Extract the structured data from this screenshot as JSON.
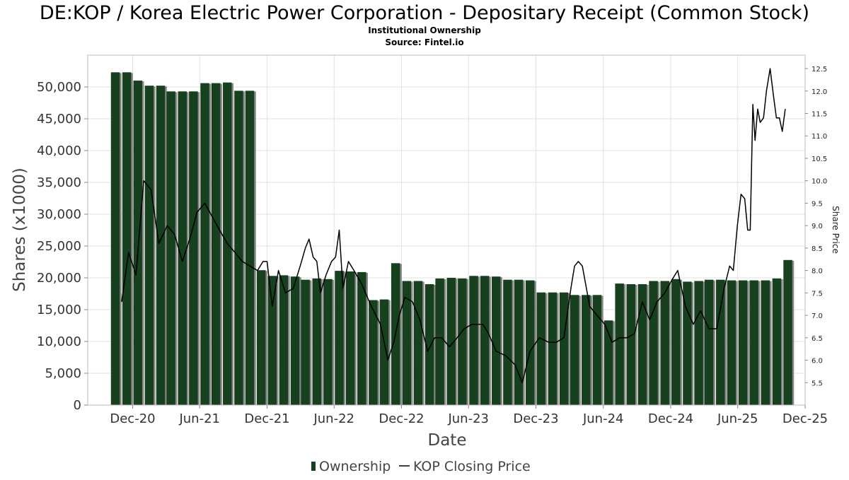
{
  "title": "DE:KOP / Korea Electric Power Corporation - Depositary Receipt (Common Stock)",
  "subtitle_1": "Institutional Ownership",
  "subtitle_2": "Source: Fintel.io",
  "chart_data": {
    "type": "bar+line",
    "xlabel": "Date",
    "ylabel_left": "Shares (x1000)",
    "ylabel_right": "Share Price",
    "ylim_left": [
      0,
      55000
    ],
    "ylim_right": [
      5.0,
      12.8
    ],
    "x_range": [
      "2020-08",
      "2025-12"
    ],
    "x_ticks": [
      {
        "date": "2020-12",
        "label": "Dec-20"
      },
      {
        "date": "2021-06",
        "label": "Jun-21"
      },
      {
        "date": "2021-12",
        "label": "Dec-21"
      },
      {
        "date": "2022-06",
        "label": "Jun-22"
      },
      {
        "date": "2022-12",
        "label": "Dec-22"
      },
      {
        "date": "2023-06",
        "label": "Jun-23"
      },
      {
        "date": "2023-12",
        "label": "Dec-23"
      },
      {
        "date": "2024-06",
        "label": "Jun-24"
      },
      {
        "date": "2024-12",
        "label": "Dec-24"
      },
      {
        "date": "2025-06",
        "label": "Jun-25"
      },
      {
        "date": "2025-12",
        "label": "Dec-25"
      }
    ],
    "y_ticks_left": [
      {
        "value": 0,
        "label": "0"
      },
      {
        "value": 5000,
        "label": "5,000"
      },
      {
        "value": 10000,
        "label": "10,000"
      },
      {
        "value": 15000,
        "label": "15,000"
      },
      {
        "value": 20000,
        "label": "20,000"
      },
      {
        "value": 25000,
        "label": "25,000"
      },
      {
        "value": 30000,
        "label": "30,000"
      },
      {
        "value": 35000,
        "label": "35,000"
      },
      {
        "value": 40000,
        "label": "40,000"
      },
      {
        "value": 45000,
        "label": "45,000"
      },
      {
        "value": 50000,
        "label": "50,000"
      }
    ],
    "y_ticks_right": [
      {
        "value": 5.5,
        "label": "5.5"
      },
      {
        "value": 6.0,
        "label": "6.0"
      },
      {
        "value": 6.5,
        "label": "6.5"
      },
      {
        "value": 7.0,
        "label": "7.0"
      },
      {
        "value": 7.5,
        "label": "7.5"
      },
      {
        "value": 8.0,
        "label": "8.0"
      },
      {
        "value": 8.5,
        "label": "8.5"
      },
      {
        "value": 9.0,
        "label": "9.0"
      },
      {
        "value": 9.5,
        "label": "9.5"
      },
      {
        "value": 10.0,
        "label": "10.0"
      },
      {
        "value": 10.5,
        "label": "10.5"
      },
      {
        "value": 11.0,
        "label": "11.0"
      },
      {
        "value": 11.5,
        "label": "11.5"
      },
      {
        "value": 12.0,
        "label": "12.0"
      },
      {
        "value": 12.5,
        "label": "12.5"
      }
    ],
    "grid": true,
    "legend_position": "bottom-center",
    "colors": {
      "bar": "#17401f",
      "bar_shadow": "#8a8a8a",
      "line": "#000000",
      "grid": "#e2e2e2"
    },
    "series": [
      {
        "name": "Ownership",
        "type": "bar",
        "points": [
          {
            "date": "2020-10-15",
            "value": 52300
          },
          {
            "date": "2020-11-15",
            "value": 52300
          },
          {
            "date": "2020-12-15",
            "value": 51000
          },
          {
            "date": "2021-01-15",
            "value": 50200
          },
          {
            "date": "2021-02-15",
            "value": 50200
          },
          {
            "date": "2021-03-15",
            "value": 49300
          },
          {
            "date": "2021-04-15",
            "value": 49300
          },
          {
            "date": "2021-05-15",
            "value": 49300
          },
          {
            "date": "2021-06-15",
            "value": 50600
          },
          {
            "date": "2021-07-15",
            "value": 50600
          },
          {
            "date": "2021-08-15",
            "value": 50700
          },
          {
            "date": "2021-09-15",
            "value": 49400
          },
          {
            "date": "2021-10-15",
            "value": 49400
          },
          {
            "date": "2021-11-15",
            "value": 21200
          },
          {
            "date": "2021-12-15",
            "value": 20300
          },
          {
            "date": "2022-01-15",
            "value": 20400
          },
          {
            "date": "2022-02-15",
            "value": 20200
          },
          {
            "date": "2022-03-15",
            "value": 19700
          },
          {
            "date": "2022-04-15",
            "value": 19900
          },
          {
            "date": "2022-05-15",
            "value": 19800
          },
          {
            "date": "2022-06-15",
            "value": 21100
          },
          {
            "date": "2022-07-15",
            "value": 21000
          },
          {
            "date": "2022-08-15",
            "value": 20900
          },
          {
            "date": "2022-09-15",
            "value": 16500
          },
          {
            "date": "2022-10-15",
            "value": 16600
          },
          {
            "date": "2022-11-15",
            "value": 22300
          },
          {
            "date": "2022-12-15",
            "value": 19500
          },
          {
            "date": "2023-01-15",
            "value": 19500
          },
          {
            "date": "2023-02-15",
            "value": 19000
          },
          {
            "date": "2023-03-15",
            "value": 19900
          },
          {
            "date": "2023-04-15",
            "value": 20000
          },
          {
            "date": "2023-05-15",
            "value": 19900
          },
          {
            "date": "2023-06-15",
            "value": 20300
          },
          {
            "date": "2023-07-15",
            "value": 20300
          },
          {
            "date": "2023-08-15",
            "value": 20200
          },
          {
            "date": "2023-09-15",
            "value": 19700
          },
          {
            "date": "2023-10-15",
            "value": 19700
          },
          {
            "date": "2023-11-15",
            "value": 19600
          },
          {
            "date": "2023-12-15",
            "value": 17700
          },
          {
            "date": "2024-01-15",
            "value": 17700
          },
          {
            "date": "2024-02-15",
            "value": 17700
          },
          {
            "date": "2024-03-15",
            "value": 17300
          },
          {
            "date": "2024-04-15",
            "value": 17300
          },
          {
            "date": "2024-05-15",
            "value": 17300
          },
          {
            "date": "2024-06-15",
            "value": 13300
          },
          {
            "date": "2024-07-15",
            "value": 19100
          },
          {
            "date": "2024-08-15",
            "value": 19000
          },
          {
            "date": "2024-09-15",
            "value": 19000
          },
          {
            "date": "2024-10-15",
            "value": 19500
          },
          {
            "date": "2024-11-15",
            "value": 19500
          },
          {
            "date": "2024-12-15",
            "value": 19800
          },
          {
            "date": "2025-01-15",
            "value": 19400
          },
          {
            "date": "2025-02-15",
            "value": 19500
          },
          {
            "date": "2025-03-15",
            "value": 19700
          },
          {
            "date": "2025-04-15",
            "value": 19700
          },
          {
            "date": "2025-05-15",
            "value": 19600
          },
          {
            "date": "2025-06-15",
            "value": 19600
          },
          {
            "date": "2025-07-15",
            "value": 19600
          },
          {
            "date": "2025-08-15",
            "value": 19600
          },
          {
            "date": "2025-09-15",
            "value": 19900
          },
          {
            "date": "2025-10-15",
            "value": 22800
          }
        ]
      },
      {
        "name": "KOP Closing Price",
        "type": "line",
        "axis": "right",
        "points": [
          {
            "date": "2020-11-01",
            "value": 7.3
          },
          {
            "date": "2020-11-20",
            "value": 8.4
          },
          {
            "date": "2020-12-10",
            "value": 7.9
          },
          {
            "date": "2020-12-31",
            "value": 10.0
          },
          {
            "date": "2021-01-20",
            "value": 9.8
          },
          {
            "date": "2021-02-10",
            "value": 8.6
          },
          {
            "date": "2021-03-05",
            "value": 9.0
          },
          {
            "date": "2021-03-25",
            "value": 8.8
          },
          {
            "date": "2021-04-15",
            "value": 8.2
          },
          {
            "date": "2021-05-05",
            "value": 8.7
          },
          {
            "date": "2021-05-25",
            "value": 9.3
          },
          {
            "date": "2021-06-15",
            "value": 9.5
          },
          {
            "date": "2021-07-05",
            "value": 9.2
          },
          {
            "date": "2021-07-25",
            "value": 8.9
          },
          {
            "date": "2021-08-15",
            "value": 8.6
          },
          {
            "date": "2021-09-05",
            "value": 8.4
          },
          {
            "date": "2021-09-25",
            "value": 8.2
          },
          {
            "date": "2021-10-15",
            "value": 8.1
          },
          {
            "date": "2021-11-05",
            "value": 8.0
          },
          {
            "date": "2021-11-20",
            "value": 8.2
          },
          {
            "date": "2021-12-01",
            "value": 8.2
          },
          {
            "date": "2021-12-15",
            "value": 7.2
          },
          {
            "date": "2022-01-01",
            "value": 8.0
          },
          {
            "date": "2022-01-20",
            "value": 7.5
          },
          {
            "date": "2022-02-10",
            "value": 7.6
          },
          {
            "date": "2022-03-01",
            "value": 8.1
          },
          {
            "date": "2022-03-15",
            "value": 8.5
          },
          {
            "date": "2022-03-25",
            "value": 8.7
          },
          {
            "date": "2022-04-05",
            "value": 8.3
          },
          {
            "date": "2022-04-15",
            "value": 8.2
          },
          {
            "date": "2022-04-25",
            "value": 7.5
          },
          {
            "date": "2022-05-10",
            "value": 7.9
          },
          {
            "date": "2022-05-25",
            "value": 8.2
          },
          {
            "date": "2022-06-05",
            "value": 8.3
          },
          {
            "date": "2022-06-15",
            "value": 8.9
          },
          {
            "date": "2022-06-25",
            "value": 7.6
          },
          {
            "date": "2022-07-10",
            "value": 8.2
          },
          {
            "date": "2022-07-25",
            "value": 8.0
          },
          {
            "date": "2022-08-15",
            "value": 7.7
          },
          {
            "date": "2022-09-10",
            "value": 7.2
          },
          {
            "date": "2022-10-05",
            "value": 6.8
          },
          {
            "date": "2022-10-25",
            "value": 6.0
          },
          {
            "date": "2022-11-10",
            "value": 6.4
          },
          {
            "date": "2022-11-25",
            "value": 7.0
          },
          {
            "date": "2022-12-10",
            "value": 7.4
          },
          {
            "date": "2022-12-31",
            "value": 7.3
          },
          {
            "date": "2023-01-20",
            "value": 6.9
          },
          {
            "date": "2023-02-10",
            "value": 6.2
          },
          {
            "date": "2023-03-01",
            "value": 6.5
          },
          {
            "date": "2023-03-20",
            "value": 6.5
          },
          {
            "date": "2023-04-10",
            "value": 6.3
          },
          {
            "date": "2023-05-01",
            "value": 6.5
          },
          {
            "date": "2023-05-20",
            "value": 6.7
          },
          {
            "date": "2023-06-10",
            "value": 6.8
          },
          {
            "date": "2023-06-25",
            "value": 6.8
          },
          {
            "date": "2023-07-10",
            "value": 6.8
          },
          {
            "date": "2023-07-25",
            "value": 6.6
          },
          {
            "date": "2023-08-15",
            "value": 6.2
          },
          {
            "date": "2023-09-10",
            "value": 6.1
          },
          {
            "date": "2023-10-05",
            "value": 5.9
          },
          {
            "date": "2023-10-25",
            "value": 5.5
          },
          {
            "date": "2023-11-15",
            "value": 6.2
          },
          {
            "date": "2023-12-10",
            "value": 6.5
          },
          {
            "date": "2024-01-05",
            "value": 6.4
          },
          {
            "date": "2024-01-25",
            "value": 6.4
          },
          {
            "date": "2024-02-15",
            "value": 6.5
          },
          {
            "date": "2024-03-05",
            "value": 7.6
          },
          {
            "date": "2024-03-15",
            "value": 8.1
          },
          {
            "date": "2024-03-25",
            "value": 8.2
          },
          {
            "date": "2024-04-05",
            "value": 8.1
          },
          {
            "date": "2024-04-25",
            "value": 7.2
          },
          {
            "date": "2024-05-15",
            "value": 7.0
          },
          {
            "date": "2024-06-05",
            "value": 6.8
          },
          {
            "date": "2024-06-25",
            "value": 6.4
          },
          {
            "date": "2024-07-15",
            "value": 6.5
          },
          {
            "date": "2024-08-05",
            "value": 6.5
          },
          {
            "date": "2024-08-25",
            "value": 6.6
          },
          {
            "date": "2024-09-15",
            "value": 7.3
          },
          {
            "date": "2024-10-05",
            "value": 6.9
          },
          {
            "date": "2024-10-25",
            "value": 7.3
          },
          {
            "date": "2024-11-15",
            "value": 7.5
          },
          {
            "date": "2024-12-05",
            "value": 7.8
          },
          {
            "date": "2024-12-20",
            "value": 8.0
          },
          {
            "date": "2025-01-10",
            "value": 7.2
          },
          {
            "date": "2025-01-31",
            "value": 6.8
          },
          {
            "date": "2025-02-20",
            "value": 7.1
          },
          {
            "date": "2025-03-15",
            "value": 6.7
          },
          {
            "date": "2025-04-05",
            "value": 6.7
          },
          {
            "date": "2025-04-25",
            "value": 7.6
          },
          {
            "date": "2025-05-10",
            "value": 8.1
          },
          {
            "date": "2025-05-20",
            "value": 8.0
          },
          {
            "date": "2025-05-31",
            "value": 9.0
          },
          {
            "date": "2025-06-10",
            "value": 9.7
          },
          {
            "date": "2025-06-20",
            "value": 9.6
          },
          {
            "date": "2025-06-28",
            "value": 8.9
          },
          {
            "date": "2025-07-05",
            "value": 8.9
          },
          {
            "date": "2025-07-12",
            "value": 11.7
          },
          {
            "date": "2025-07-18",
            "value": 10.9
          },
          {
            "date": "2025-07-25",
            "value": 11.6
          },
          {
            "date": "2025-08-01",
            "value": 11.3
          },
          {
            "date": "2025-08-10",
            "value": 11.4
          },
          {
            "date": "2025-08-18",
            "value": 12.0
          },
          {
            "date": "2025-08-28",
            "value": 12.5
          },
          {
            "date": "2025-09-06",
            "value": 11.9
          },
          {
            "date": "2025-09-14",
            "value": 11.4
          },
          {
            "date": "2025-09-22",
            "value": 11.4
          },
          {
            "date": "2025-09-30",
            "value": 11.1
          },
          {
            "date": "2025-10-08",
            "value": 11.6
          }
        ]
      }
    ]
  },
  "legend": [
    {
      "label": "Ownership",
      "kind": "bar"
    },
    {
      "label": "KOP Closing Price",
      "kind": "line"
    }
  ]
}
